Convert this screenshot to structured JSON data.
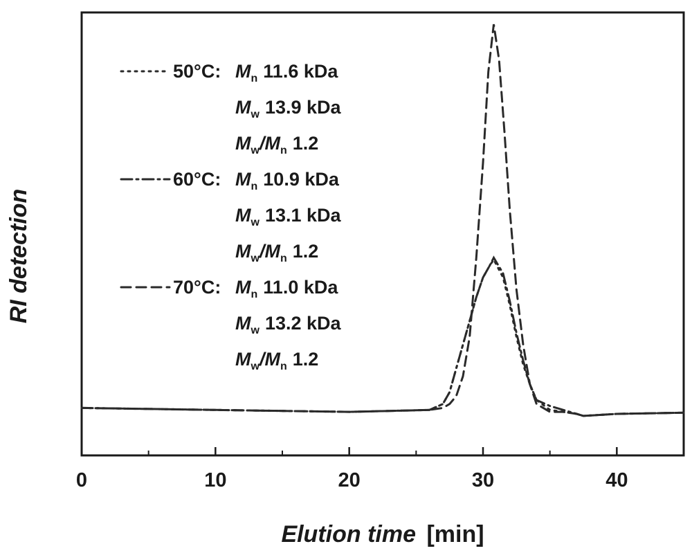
{
  "chart_data": {
    "type": "line",
    "xlabel_italic": "Elution time",
    "xlabel_unit": "[min]",
    "ylabel": "RI detection",
    "xlim": [
      0,
      45
    ],
    "xticks": [
      "0",
      "10",
      "20",
      "30",
      "40"
    ],
    "xtick_values": [
      0,
      10,
      20,
      30,
      40
    ],
    "ylim": [
      -0.12,
      1.0
    ],
    "y_ticks_shown": false,
    "grid": false,
    "legend_position": "top-left",
    "series": [
      {
        "key": "s50",
        "label": "50°C",
        "dash": "dotted",
        "color": "#2a2a2a",
        "stats": [
          {
            "sym": "M",
            "sub": "n",
            "value": "11.6 kDa"
          },
          {
            "sym": "M",
            "sub": "w",
            "value": "13.9 kDa"
          },
          {
            "ratio": true,
            "sym1": "M",
            "sub1": "w",
            "sym2": "M",
            "sub2": "n",
            "value": "1.2"
          }
        ],
        "x": [
          0,
          10,
          20,
          26,
          27,
          27.5,
          28,
          28.5,
          29,
          29.5,
          30,
          30.5,
          30.8,
          31.5,
          32,
          32.5,
          33,
          33.5,
          34,
          35,
          36,
          37,
          37.5,
          40,
          45
        ],
        "y": [
          0,
          -0.005,
          -0.01,
          -0.005,
          0.01,
          0.04,
          0.1,
          0.16,
          0.22,
          0.28,
          0.33,
          0.36,
          0.375,
          0.33,
          0.26,
          0.18,
          0.11,
          0.06,
          0.02,
          -0.005,
          -0.01,
          -0.015,
          -0.02,
          -0.015,
          -0.012
        ]
      },
      {
        "key": "s60",
        "label": "60°C",
        "dash": "dash-dot",
        "color": "#2a2a2a",
        "stats": [
          {
            "sym": "M",
            "sub": "n",
            "value": "10.9 kDa"
          },
          {
            "sym": "M",
            "sub": "w",
            "value": "13.1 kDa"
          },
          {
            "ratio": true,
            "sym1": "M",
            "sub1": "w",
            "sym2": "M",
            "sub2": "n",
            "value": "1.2"
          }
        ],
        "x": [
          0,
          10,
          20,
          26,
          27,
          27.5,
          28,
          28.5,
          29,
          29.5,
          30,
          30.5,
          30.8,
          31.5,
          32,
          32.5,
          33,
          33.5,
          34,
          35,
          36,
          37,
          37.5,
          40,
          45
        ],
        "y": [
          0,
          -0.005,
          -0.01,
          -0.005,
          0.01,
          0.04,
          0.1,
          0.16,
          0.22,
          0.28,
          0.33,
          0.36,
          0.38,
          0.34,
          0.27,
          0.19,
          0.12,
          0.06,
          0.02,
          0.005,
          -0.005,
          -0.015,
          -0.02,
          -0.015,
          -0.012
        ]
      },
      {
        "key": "s70",
        "label": "70°C",
        "dash": "dashed",
        "color": "#2a2a2a",
        "stats": [
          {
            "sym": "M",
            "sub": "n",
            "value": "11.0 kDa"
          },
          {
            "sym": "M",
            "sub": "w",
            "value": "13.2 kDa"
          },
          {
            "ratio": true,
            "sym1": "M",
            "sub1": "w",
            "sym2": "M",
            "sub2": "n",
            "value": "1.2"
          }
        ],
        "x": [
          0,
          10,
          20,
          26,
          27,
          27.5,
          28,
          28.5,
          29,
          29.5,
          30,
          30.4,
          30.8,
          31.2,
          31.6,
          32,
          32.5,
          33,
          33.5,
          34,
          35,
          36,
          37,
          37.5,
          40,
          45
        ],
        "y": [
          0,
          -0.005,
          -0.01,
          -0.005,
          0.0,
          0.01,
          0.03,
          0.08,
          0.18,
          0.38,
          0.62,
          0.85,
          0.97,
          0.88,
          0.7,
          0.5,
          0.3,
          0.16,
          0.06,
          0.01,
          -0.01,
          -0.01,
          -0.015,
          -0.02,
          -0.015,
          -0.012
        ]
      }
    ]
  }
}
